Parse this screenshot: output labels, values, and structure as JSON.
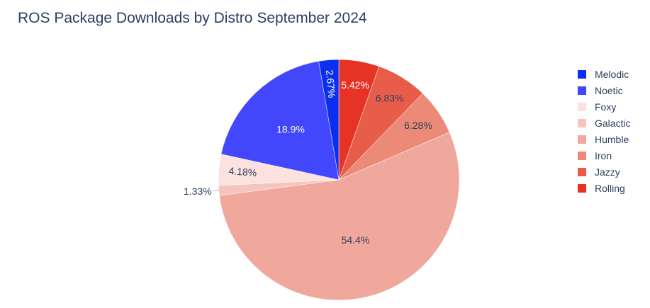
{
  "chart_data": {
    "type": "pie",
    "title": "ROS Package Downloads by Distro September 2024",
    "legend_position": "right",
    "direction": "clockwise",
    "slices": [
      {
        "label": "Rolling",
        "value": 5.42,
        "text": "5.42%",
        "color": "#e63325",
        "text_color": "#ffffff"
      },
      {
        "label": "Jazzy",
        "value": 6.83,
        "text": "6.83%",
        "color": "#e85d4a",
        "text_color": "#2a3f5f"
      },
      {
        "label": "Iron",
        "value": 6.28,
        "text": "6.28%",
        "color": "#ec8a78",
        "text_color": "#2a3f5f"
      },
      {
        "label": "Humble",
        "value": 54.4,
        "text": "54.4%",
        "color": "#f1a89c",
        "text_color": "#2a3f5f"
      },
      {
        "label": "Galactic",
        "value": 1.33,
        "text": "1.33%",
        "color": "#f5c4bc",
        "text_color": "#2a3f5f"
      },
      {
        "label": "Foxy",
        "value": 4.18,
        "text": "4.18%",
        "color": "#fbe2df",
        "text_color": "#2a3f5f"
      },
      {
        "label": "Noetic",
        "value": 18.9,
        "text": "18.9%",
        "color": "#4347fb",
        "text_color": "#ffffff"
      },
      {
        "label": "Melodic",
        "value": 2.67,
        "text": "2.67%",
        "color": "#0a2ff3",
        "text_color": "#ffffff"
      }
    ],
    "legend": [
      {
        "label": "Melodic",
        "color": "#0a2ff3"
      },
      {
        "label": "Noetic",
        "color": "#4347fb"
      },
      {
        "label": "Foxy",
        "color": "#fbe2df"
      },
      {
        "label": "Galactic",
        "color": "#f5c4bc"
      },
      {
        "label": "Humble",
        "color": "#f1a89c"
      },
      {
        "label": "Iron",
        "color": "#ec8a78"
      },
      {
        "label": "Jazzy",
        "color": "#e85d4a"
      },
      {
        "label": "Rolling",
        "color": "#e63325"
      }
    ]
  }
}
